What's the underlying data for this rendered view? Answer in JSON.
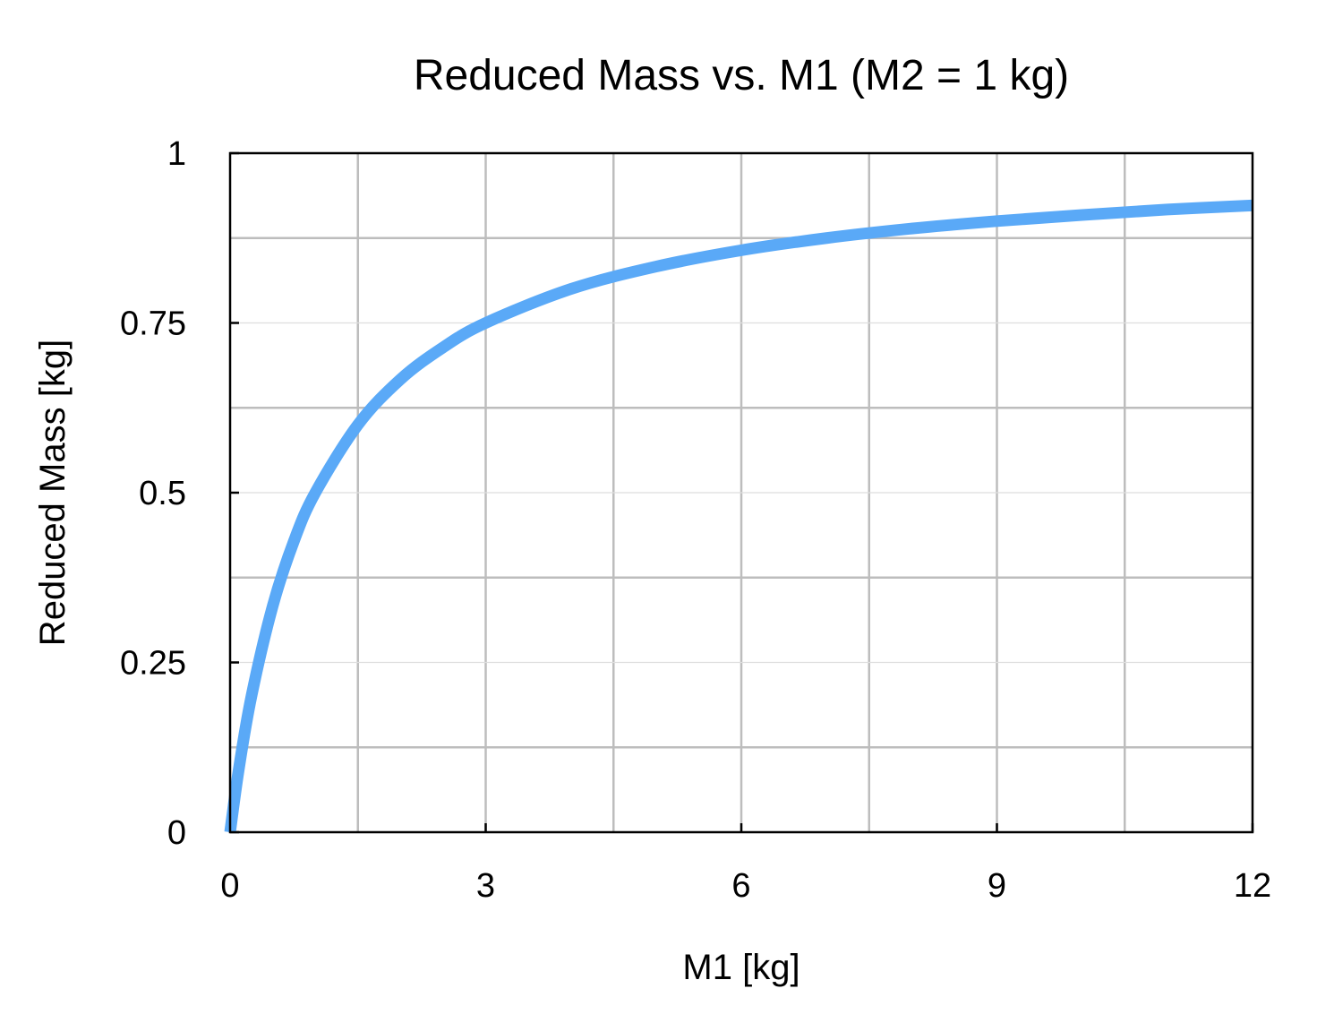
{
  "chart_data": {
    "type": "line",
    "title": "Reduced Mass vs. M1 (M2 = 1 kg)",
    "xlabel": "M1 [kg]",
    "ylabel": "Reduced Mass [kg]",
    "xlim": [
      0,
      12
    ],
    "ylim": [
      0,
      1
    ],
    "x_ticks": [
      {
        "value": 0,
        "label": "0"
      },
      {
        "value": 3,
        "label": "3"
      },
      {
        "value": 6,
        "label": "6"
      },
      {
        "value": 9,
        "label": "9"
      },
      {
        "value": 12,
        "label": "12"
      }
    ],
    "y_ticks": [
      {
        "value": 0,
        "label": "0"
      },
      {
        "value": 0.25,
        "label": "0.25"
      },
      {
        "value": 0.5,
        "label": "0.5"
      },
      {
        "value": 0.75,
        "label": "0.75"
      },
      {
        "value": 1,
        "label": "1"
      }
    ],
    "x_major_grid": [
      1.5,
      3,
      4.5,
      6,
      7.5,
      9,
      10.5
    ],
    "y_major_grid": [
      0.125,
      0.375,
      0.625,
      0.875
    ],
    "y_minor_grid": [
      0.25,
      0.5,
      0.75
    ],
    "grid": true,
    "legend": false,
    "series": [
      {
        "color": "#5aa9f7",
        "x": [
          0,
          0.1,
          0.25,
          0.5,
          0.75,
          1,
          1.5,
          2,
          2.5,
          3,
          4,
          5,
          6,
          7,
          8,
          9,
          10,
          11,
          12
        ],
        "y": [
          0,
          0.091,
          0.2,
          0.333,
          0.429,
          0.5,
          0.6,
          0.667,
          0.714,
          0.75,
          0.8,
          0.833,
          0.857,
          0.875,
          0.889,
          0.9,
          0.909,
          0.917,
          0.923
        ]
      }
    ]
  }
}
